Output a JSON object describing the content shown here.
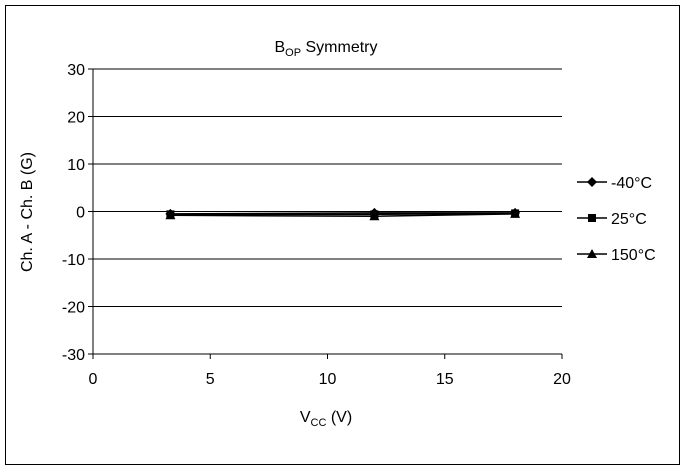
{
  "chart_data": {
    "type": "line",
    "title_main": "B",
    "title_sub": "OP",
    "title_rest": " Symmetry",
    "xlabel_main": "V",
    "xlabel_sub": "CC",
    "xlabel_rest": " (V)",
    "ylabel": "Ch. A - Ch. B (G)",
    "xlim": [
      0,
      20
    ],
    "ylim": [
      -30,
      30
    ],
    "xticks": [
      0,
      5,
      10,
      15,
      20
    ],
    "yticks": [
      30,
      20,
      10,
      0,
      -10,
      -20,
      -30
    ],
    "grid": "horizontal",
    "legend_position": "right",
    "series": [
      {
        "name": "-40°C",
        "marker": "diamond",
        "color": "#000000",
        "x": [
          3.3,
          12,
          18
        ],
        "y": [
          -0.5,
          -0.3,
          -0.3
        ]
      },
      {
        "name": "25°C",
        "marker": "square",
        "color": "#000000",
        "x": [
          3.3,
          12,
          18
        ],
        "y": [
          -0.6,
          -0.6,
          -0.4
        ]
      },
      {
        "name": "150°C",
        "marker": "triangle",
        "color": "#000000",
        "x": [
          3.3,
          12,
          18
        ],
        "y": [
          -0.8,
          -1.0,
          -0.5
        ]
      }
    ]
  }
}
